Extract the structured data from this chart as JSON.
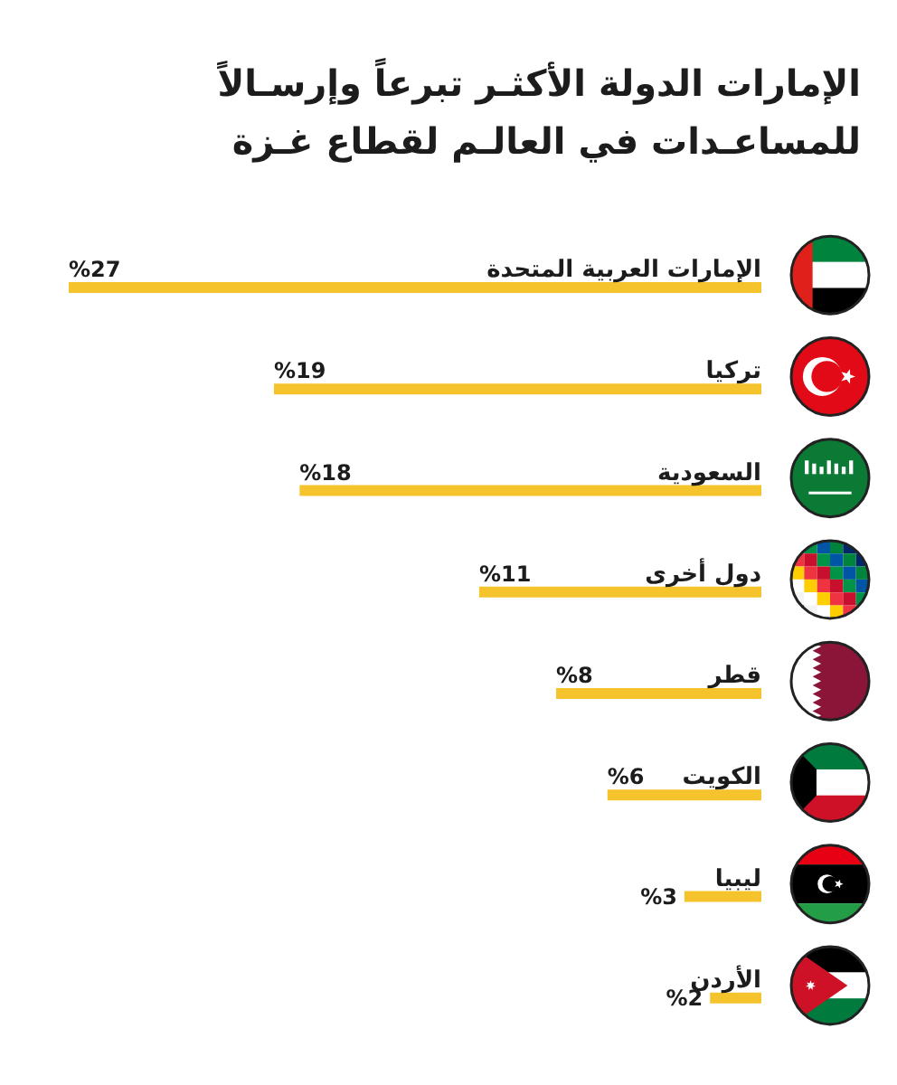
{
  "chart_data": {
    "type": "bar",
    "orientation": "horizontal",
    "title": "الإمارات الدولة الأكثـر تبرعاً وإرسـالاً للمساعـدات في العالـم لقطاع غـزة",
    "categories": [
      "الإمارات العربية المتحدة",
      "تركيا",
      "السعودية",
      "دول أخرى",
      "قطر",
      "الكويت",
      "ليبيا",
      "الأردن"
    ],
    "values": [
      27,
      19,
      18,
      11,
      8,
      6,
      3,
      2
    ],
    "value_labels": [
      "%27",
      "%19",
      "%18",
      "%11",
      "%8",
      "%6",
      "%3",
      "%2"
    ],
    "color": "#f5c32c",
    "tick_labels": "y"
  }
}
